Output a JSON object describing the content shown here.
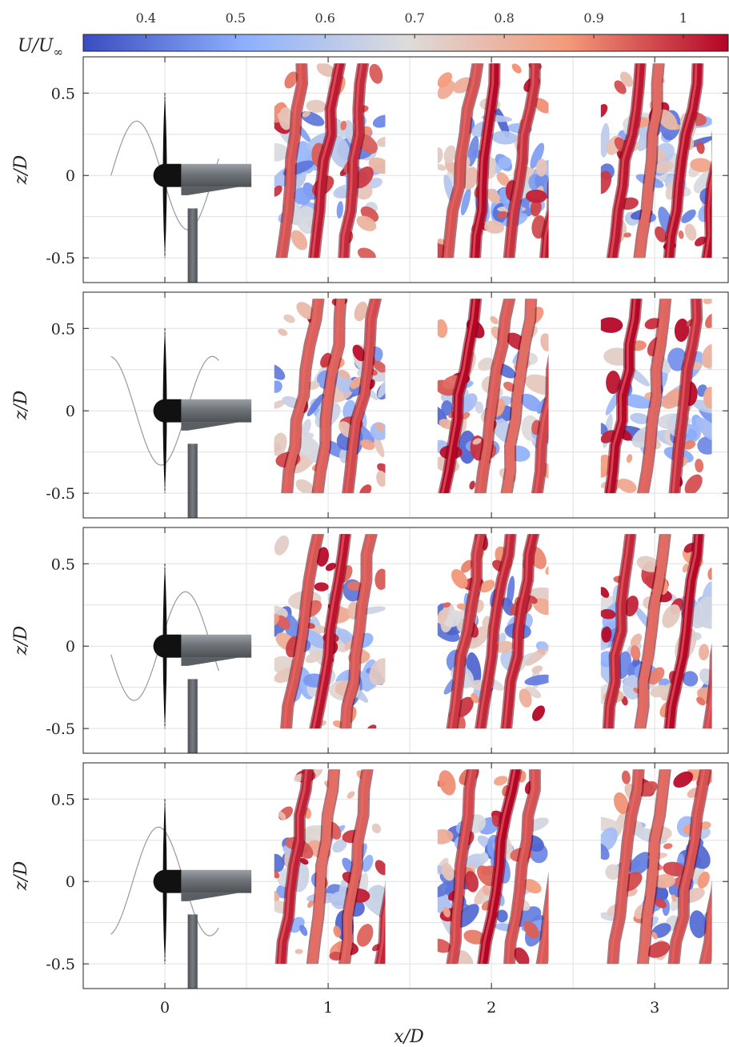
{
  "chart_data": {
    "type": "other",
    "colorbar": {
      "label": "U/U∞",
      "label_parts": {
        "var": "U",
        "slash": "/",
        "sub_var": "U",
        "sub": "∞"
      },
      "range": [
        0.33,
        1.05
      ],
      "ticks": [
        "0.4",
        "0.5",
        "0.6",
        "0.7",
        "0.8",
        "0.9",
        "1"
      ],
      "tick_values": [
        0.4,
        0.5,
        0.6,
        0.7,
        0.8,
        0.9,
        1.0
      ],
      "colormap": [
        "#3a4cc0",
        "#8db0fe",
        "#dddcdc",
        "#f49a7b",
        "#b40426"
      ]
    },
    "xlabel": "x/D",
    "ylabel": "z/D",
    "xlim": [
      -0.5,
      3.45
    ],
    "ylim": [
      -0.65,
      0.72
    ],
    "xticks": [
      "0",
      "1",
      "2",
      "3"
    ],
    "xtick_values": [
      0,
      1,
      2,
      3
    ],
    "yticks": [
      "0.5",
      "0",
      "-0.5"
    ],
    "ytick_values": [
      0.5,
      0,
      -0.5
    ],
    "grid": true,
    "panels": [
      {
        "motion_phase": 0.0
      },
      {
        "motion_phase": 0.25
      },
      {
        "motion_phase": 0.5
      },
      {
        "motion_phase": 0.75
      }
    ],
    "wake_windows_xD": [
      [
        0.67,
        1.35
      ],
      [
        1.67,
        2.35
      ],
      [
        2.67,
        3.35
      ]
    ],
    "wake_windows_zD": [
      -0.5,
      0.68
    ],
    "colors": {
      "grid": "#e0e0e0",
      "axis": "#222222",
      "turbine_nacelle": "#6e7378",
      "turbine_hub": "#111111",
      "tower": "#5f646a",
      "motion_curve": "#9a9a9a",
      "vortex_red": "#b40426",
      "vortex_blue": "#3b5cc7"
    }
  }
}
